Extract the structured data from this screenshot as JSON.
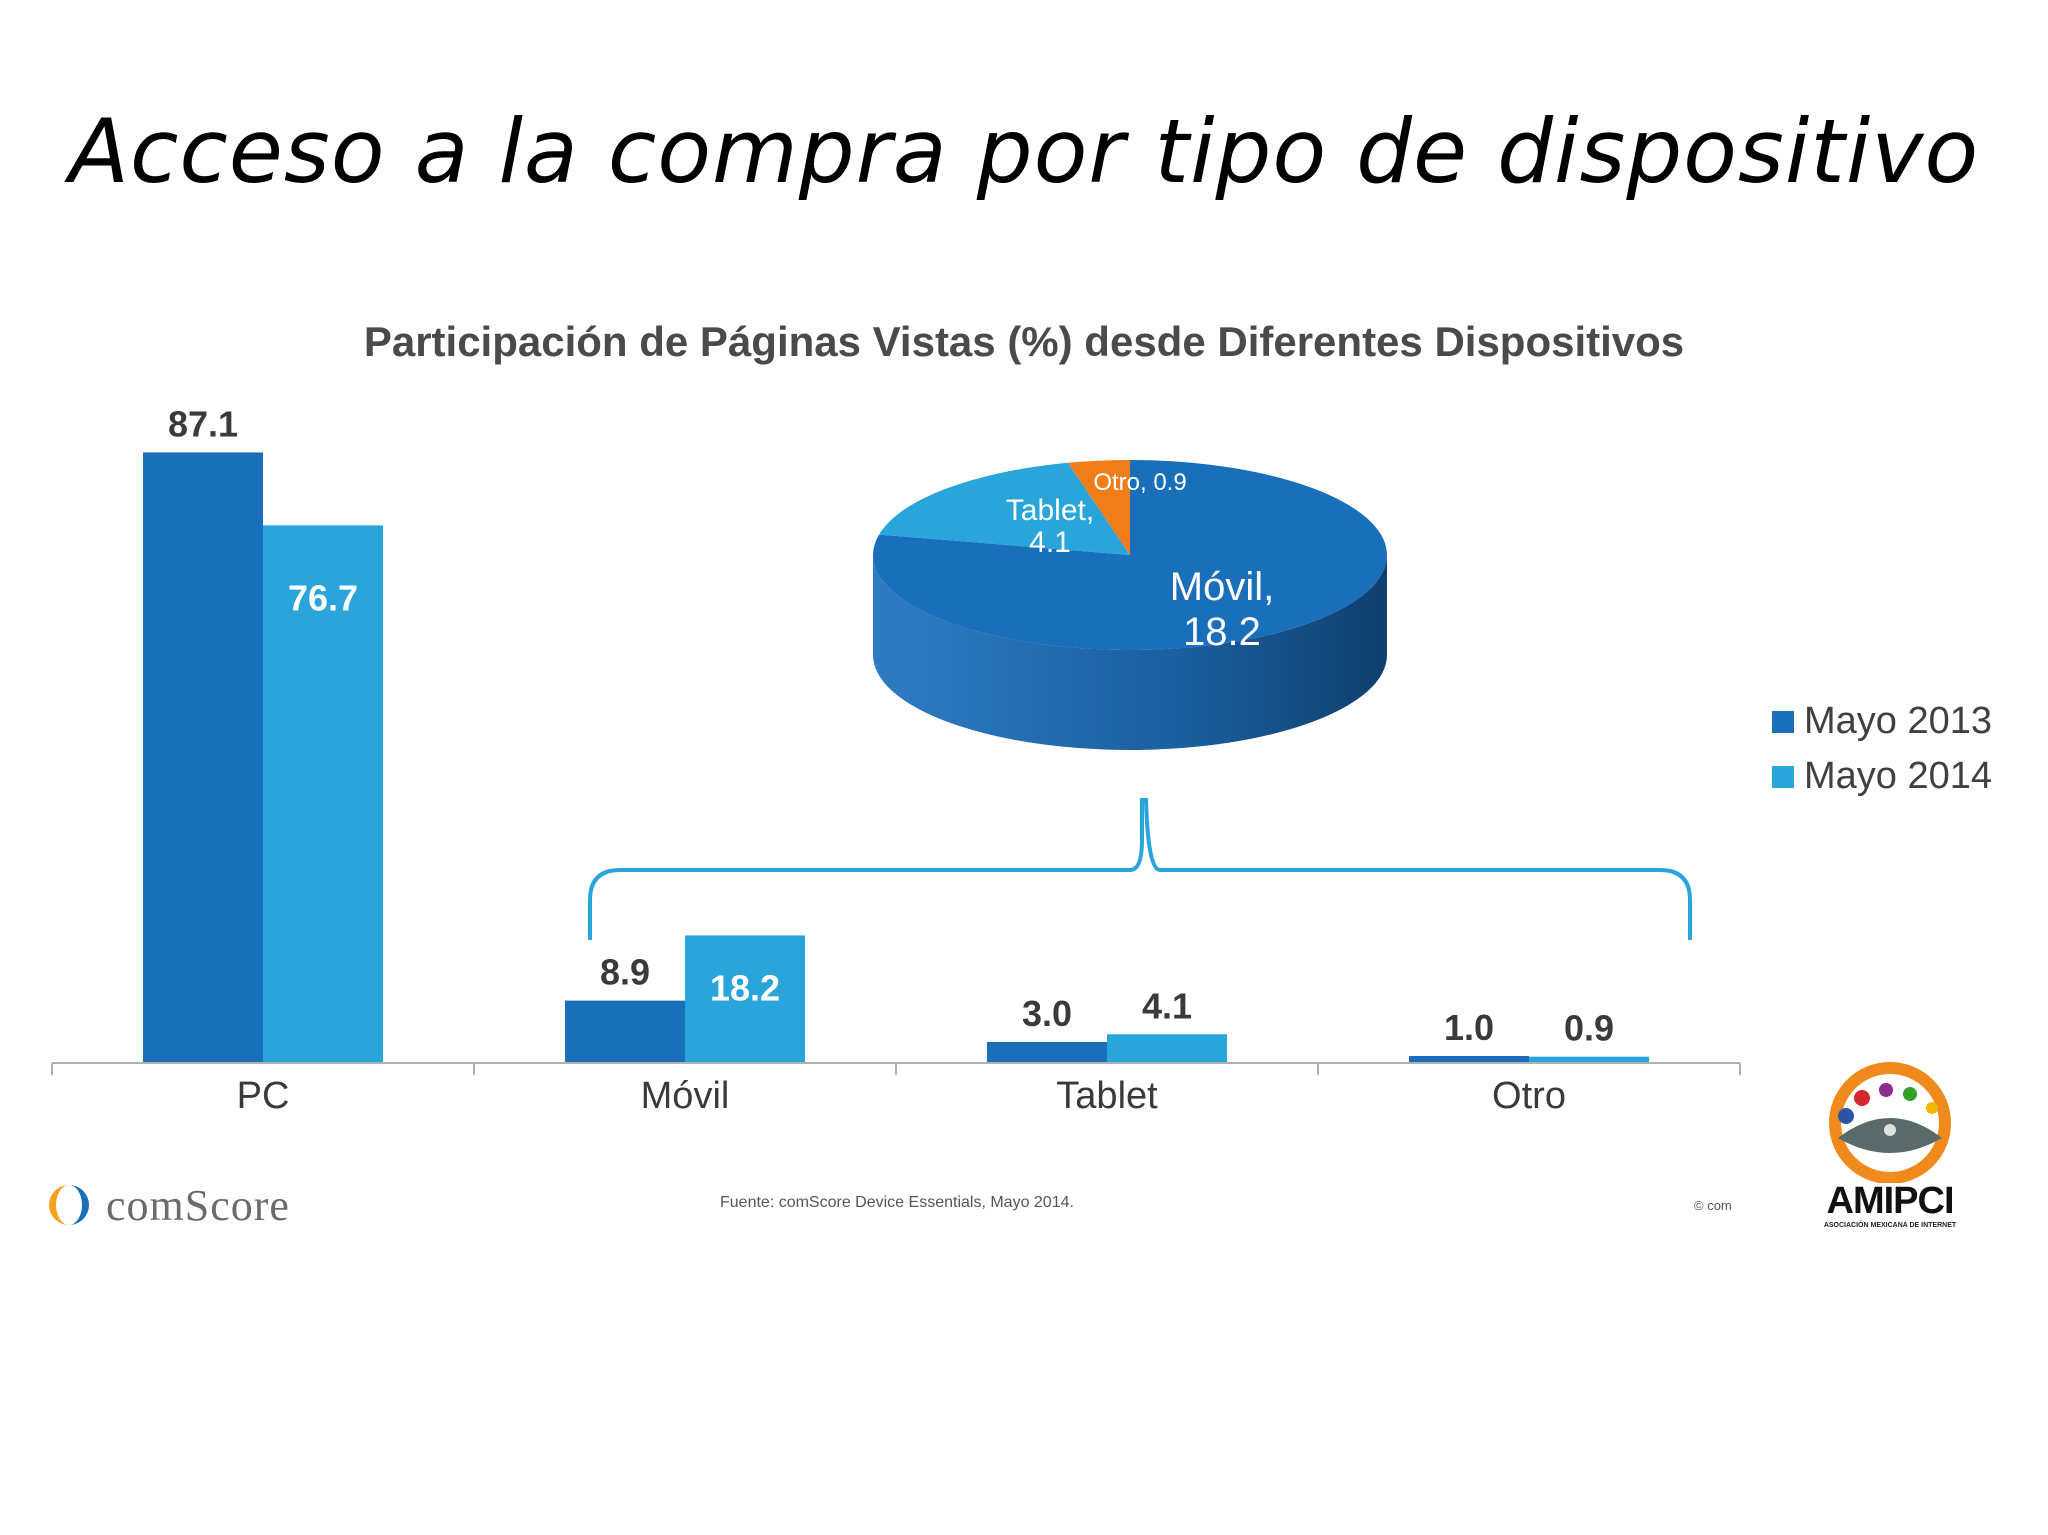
{
  "slide": {
    "title": "Acceso a la compra por tipo de dispositivo",
    "source": "Fuente: comScore Device Essentials, Mayo 2014.",
    "copyright": "© com",
    "logos": {
      "comscore": "comScore",
      "amipci": "AMIPCI",
      "amipci_tagline": "ASOCIACIÓN MEXICANA DE INTERNET"
    }
  },
  "colors": {
    "mayo_2013": "#1a6fba",
    "mayo_2014": "#29a5dc",
    "otro_slice": "#ef7d1a",
    "bracket": "#29a5dc",
    "axis": "#b0b0b0"
  },
  "chart_data": [
    {
      "type": "bar",
      "title": "Participación de Páginas Vistas (%) desde Diferentes Dispositivos",
      "categories": [
        "PC",
        "Móvil",
        "Tablet",
        "Otro"
      ],
      "series": [
        {
          "name": "Mayo 2013",
          "values": [
            87.1,
            8.9,
            3.0,
            1.0
          ],
          "labels": [
            "87.1",
            "8.9",
            "3.0",
            "1.0"
          ]
        },
        {
          "name": "Mayo 2014",
          "values": [
            76.7,
            18.2,
            4.1,
            0.9
          ],
          "labels": [
            "76.7",
            "18.2",
            "4.1",
            "0.9"
          ]
        }
      ],
      "ylim": [
        0,
        100
      ],
      "grid": false,
      "legend_position": "right"
    },
    {
      "type": "pie",
      "slices": [
        {
          "label": "Móvil,",
          "value": 18.2,
          "value_label": "18.2"
        },
        {
          "label": "Tablet,",
          "value": 4.1,
          "value_label": "4.1"
        },
        {
          "label": "Otro,",
          "value": 0.9,
          "value_label": "0.9"
        }
      ]
    }
  ]
}
